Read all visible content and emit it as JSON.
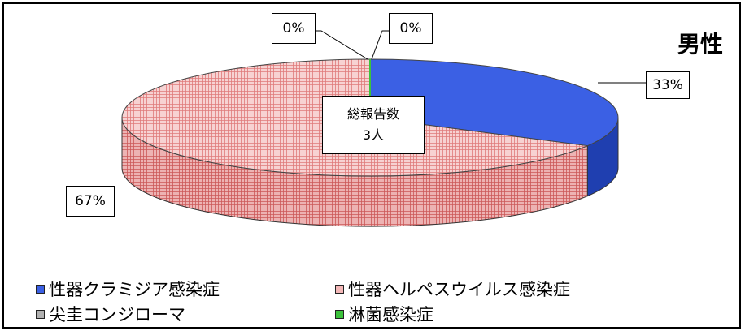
{
  "chart_data": {
    "type": "pie",
    "title": "男性",
    "categories": [
      "性器クラミジア感染症",
      "性器ヘルペスウイルス感染症",
      "尖圭コンジローマ",
      "淋菌感染症"
    ],
    "values": [
      33,
      67,
      0,
      0
    ],
    "value_labels": [
      "33%",
      "67%",
      "0%",
      "0%"
    ],
    "colors": [
      "#3b60e4",
      "#f4b8b8",
      "#b0b0b0",
      "#3cc23c"
    ],
    "center_label": {
      "line1": "総報告数",
      "line2": "3人"
    },
    "legend_position": "bottom"
  }
}
